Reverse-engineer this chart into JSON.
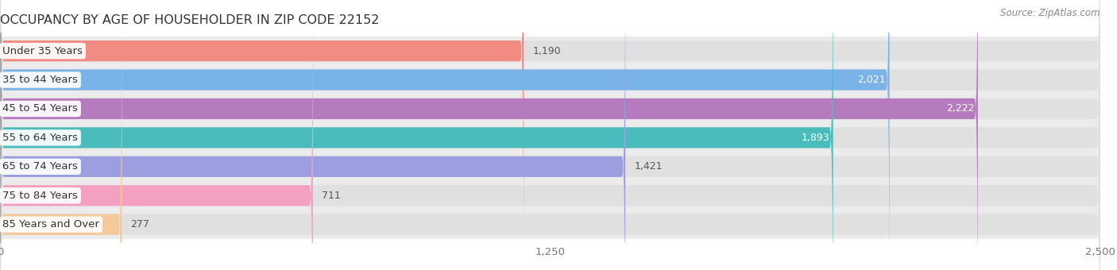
{
  "title": "OCCUPANCY BY AGE OF HOUSEHOLDER IN ZIP CODE 22152",
  "source": "Source: ZipAtlas.com",
  "categories": [
    "Under 35 Years",
    "35 to 44 Years",
    "45 to 54 Years",
    "55 to 64 Years",
    "65 to 74 Years",
    "75 to 84 Years",
    "85 Years and Over"
  ],
  "values": [
    1190,
    2021,
    2222,
    1893,
    1421,
    711,
    277
  ],
  "bar_colors": [
    "#f28b82",
    "#7ab3e8",
    "#b57bbe",
    "#4bbcbc",
    "#9b9fe0",
    "#f4a0c0",
    "#f5c99a"
  ],
  "value_inside": [
    false,
    true,
    true,
    true,
    false,
    false,
    false
  ],
  "xlim": [
    0,
    2500
  ],
  "xticks": [
    0,
    1250,
    2500
  ],
  "background_color": "#f0f0f0",
  "bar_bg_color": "#e2e2e2",
  "row_bg_color": "#f0f0f0",
  "title_fontsize": 11.5,
  "label_fontsize": 9.5,
  "value_fontsize": 9,
  "source_fontsize": 8.5
}
